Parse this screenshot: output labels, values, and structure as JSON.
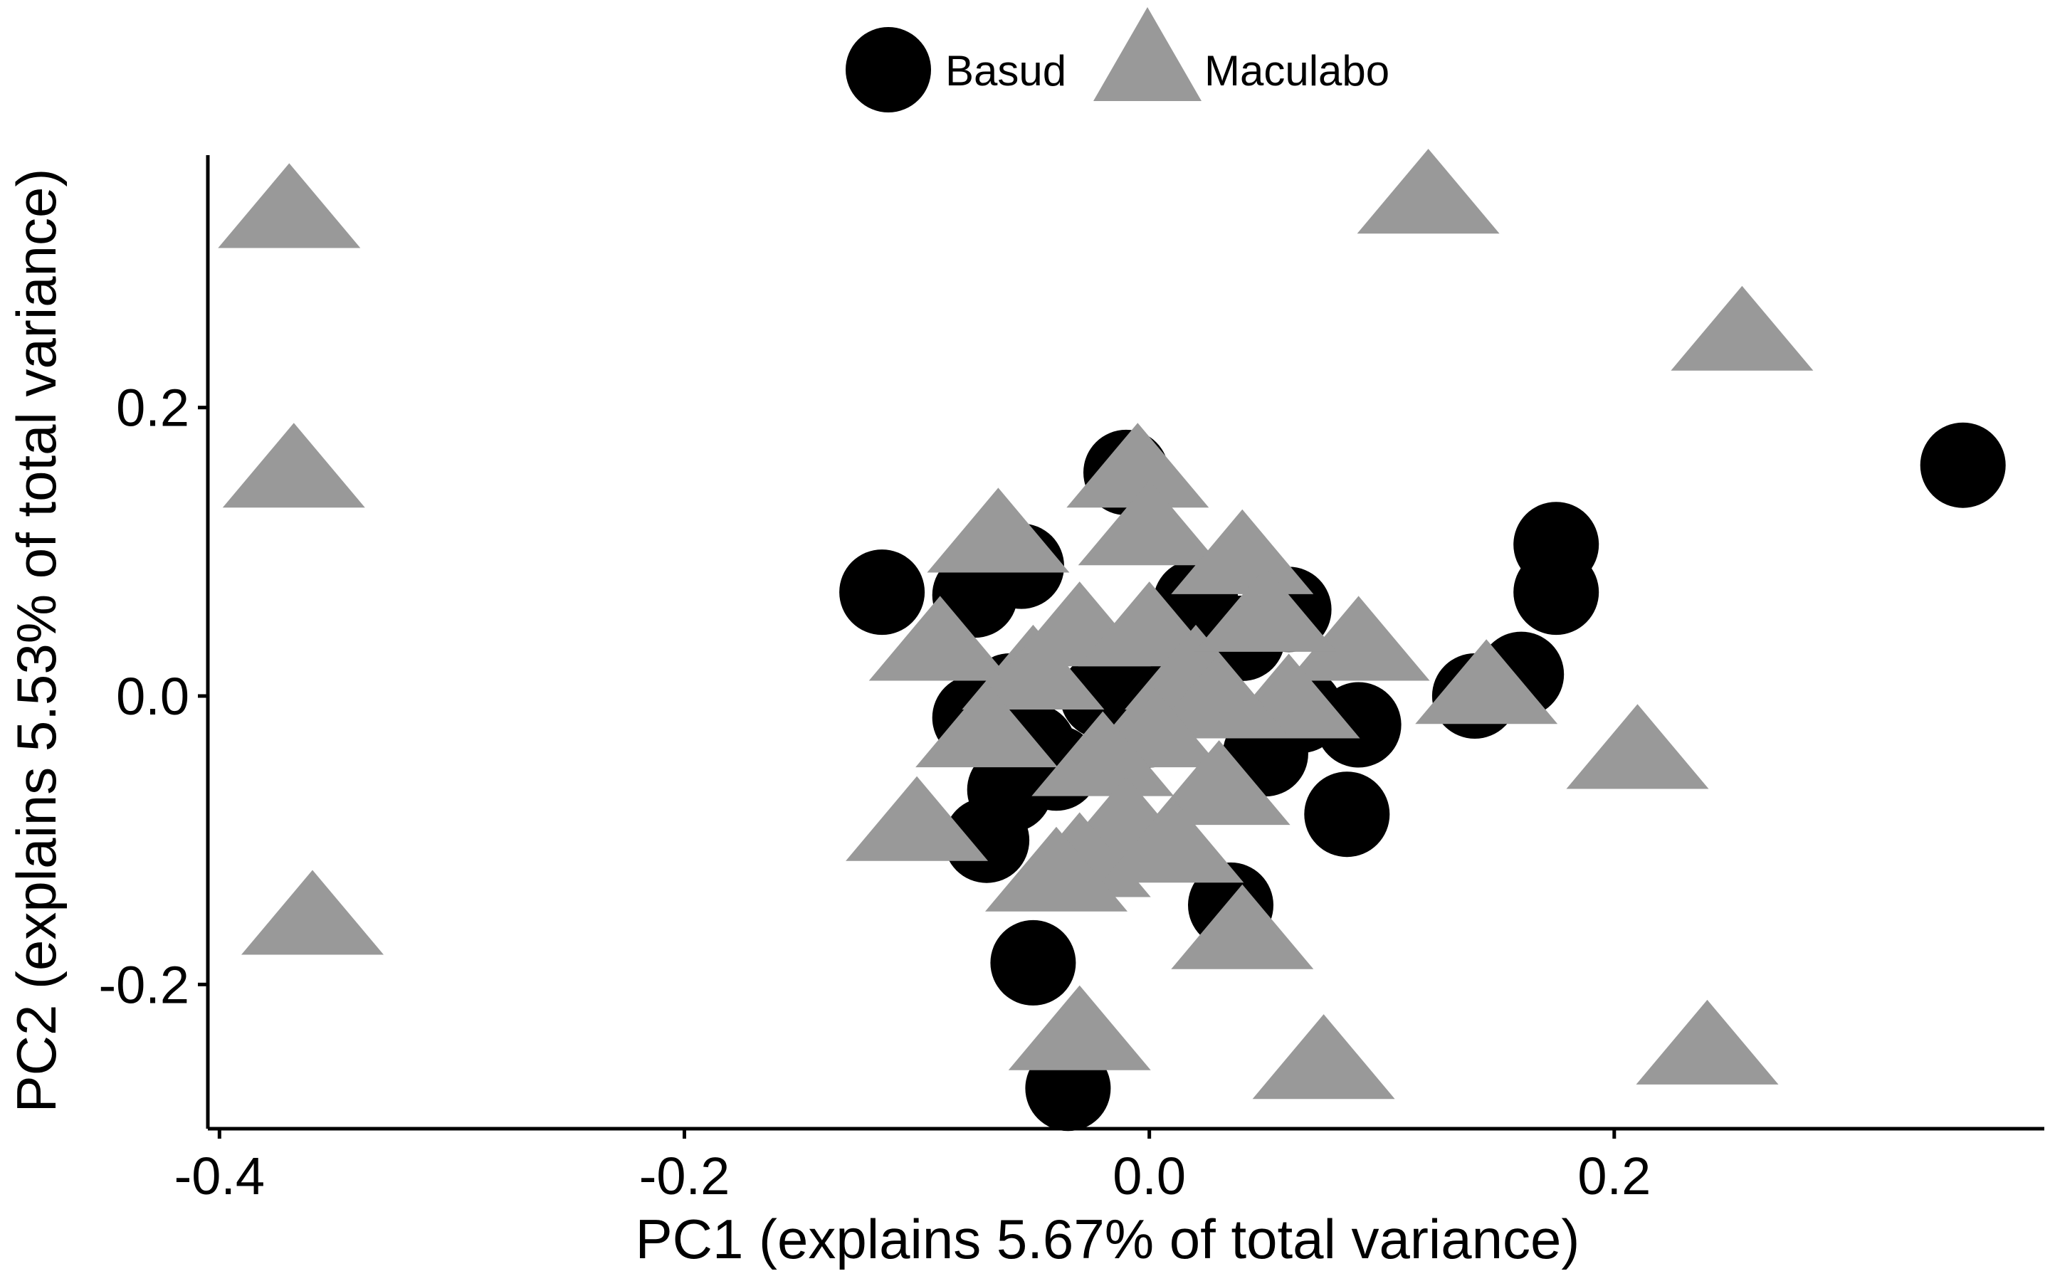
{
  "chart_data": {
    "type": "scatter",
    "title": "",
    "xlabel": "PC1 (explains 5.67% of total variance)",
    "ylabel": "PC2 (explains 5.53% of total variance)",
    "xlim": [
      -0.405,
      0.385
    ],
    "ylim": [
      -0.3,
      0.375
    ],
    "xticks": [
      -0.4,
      -0.2,
      0.0,
      0.2
    ],
    "xtick_labels": [
      "-0.4",
      "-0.2",
      "0.0",
      "0.2"
    ],
    "yticks": [
      -0.2,
      0.0,
      0.2
    ],
    "ytick_labels": [
      "-0.2",
      "0.0",
      "0.2"
    ],
    "grid": false,
    "legend_position": "top",
    "series": [
      {
        "name": "Basud",
        "marker": "circle",
        "color": "#000000",
        "points": [
          [
            -0.115,
            0.072
          ],
          [
            -0.055,
            0.09
          ],
          [
            -0.075,
            0.07
          ],
          [
            -0.01,
            0.155
          ],
          [
            0.02,
            0.065
          ],
          [
            0.06,
            0.06
          ],
          [
            0.04,
            0.04
          ],
          [
            -0.06,
            0.0
          ],
          [
            -0.075,
            -0.015
          ],
          [
            -0.05,
            -0.035
          ],
          [
            -0.06,
            -0.065
          ],
          [
            -0.07,
            -0.1
          ],
          [
            -0.04,
            -0.05
          ],
          [
            0.05,
            -0.04
          ],
          [
            0.065,
            -0.01
          ],
          [
            0.09,
            -0.02
          ],
          [
            0.085,
            -0.082
          ],
          [
            0.035,
            -0.145
          ],
          [
            -0.05,
            -0.185
          ],
          [
            -0.035,
            -0.272
          ],
          [
            0.14,
            0.0
          ],
          [
            0.16,
            0.015
          ],
          [
            0.175,
            0.105
          ],
          [
            0.175,
            0.072
          ],
          [
            0.35,
            0.16
          ],
          [
            0.01,
            0.02
          ],
          [
            0.0,
            -0.02
          ],
          [
            -0.02,
            0.0
          ]
        ]
      },
      {
        "name": "Maculabo",
        "marker": "triangle",
        "color": "#999999",
        "points": [
          [
            -0.37,
            0.34
          ],
          [
            -0.368,
            0.16
          ],
          [
            -0.36,
            -0.15
          ],
          [
            0.12,
            0.35
          ],
          [
            0.255,
            0.255
          ],
          [
            -0.065,
            0.115
          ],
          [
            -0.09,
            0.04
          ],
          [
            -0.05,
            0.02
          ],
          [
            -0.005,
            0.16
          ],
          [
            0.0,
            0.12
          ],
          [
            0.04,
            0.1
          ],
          [
            0.09,
            0.04
          ],
          [
            0.06,
            0.0
          ],
          [
            0.145,
            0.01
          ],
          [
            0.21,
            -0.035
          ],
          [
            -0.1,
            -0.085
          ],
          [
            -0.07,
            -0.02
          ],
          [
            -0.03,
            0.05
          ],
          [
            0.0,
            0.05
          ],
          [
            0.02,
            0.02
          ],
          [
            0.03,
            0.0
          ],
          [
            0.0,
            -0.02
          ],
          [
            -0.02,
            -0.04
          ],
          [
            0.03,
            -0.06
          ],
          [
            -0.01,
            -0.085
          ],
          [
            -0.03,
            -0.11
          ],
          [
            0.01,
            -0.1
          ],
          [
            0.04,
            -0.16
          ],
          [
            -0.03,
            -0.23
          ],
          [
            0.075,
            -0.25
          ],
          [
            0.24,
            -0.24
          ],
          [
            -0.04,
            -0.12
          ],
          [
            0.05,
            0.06
          ]
        ]
      }
    ]
  }
}
